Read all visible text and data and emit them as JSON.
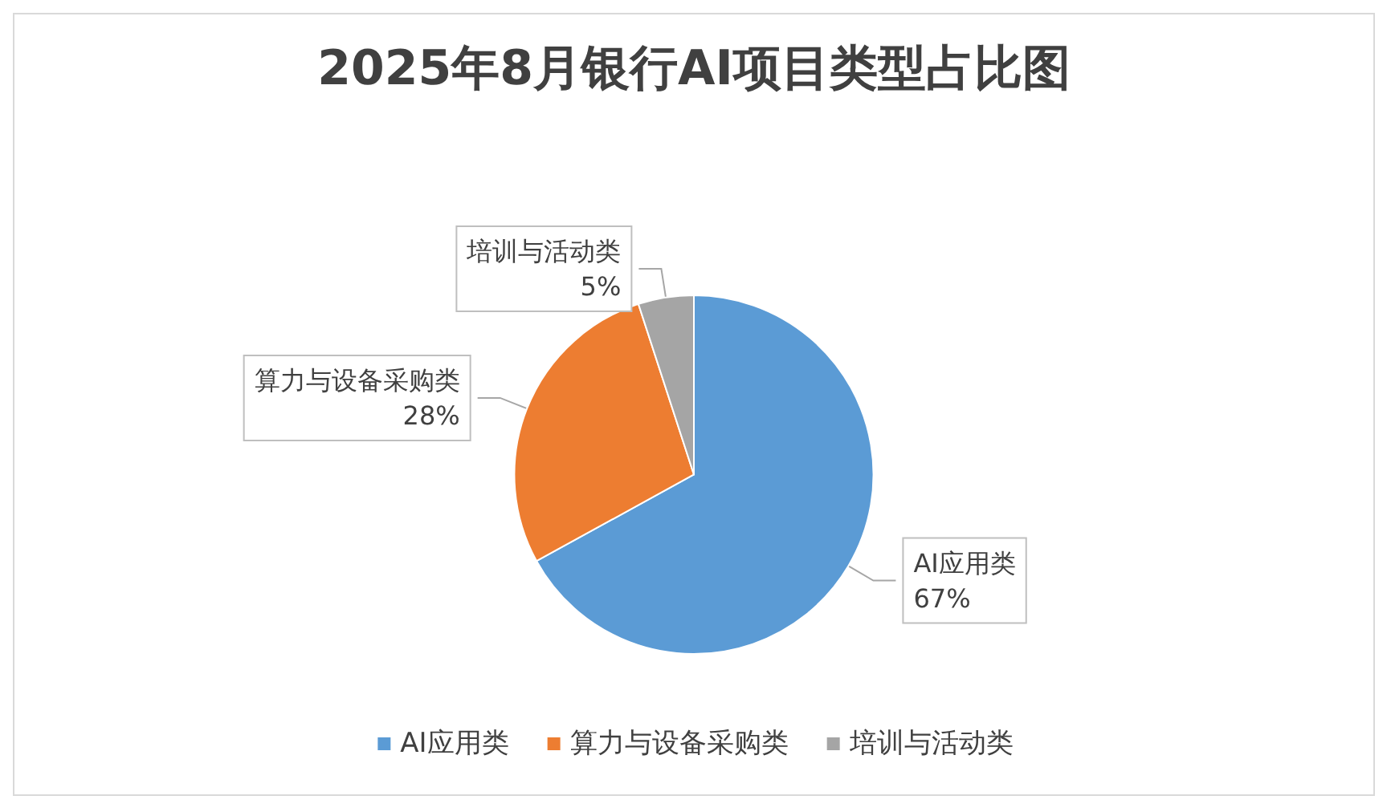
{
  "chart_data": {
    "type": "pie",
    "title": "2025年8月银行AI项目类型占比图",
    "categories": [
      "AI应用类",
      "算力与设备采购类",
      "培训与活动类"
    ],
    "values": [
      67,
      28,
      5
    ],
    "value_labels": [
      "67%",
      "28%",
      "5%"
    ],
    "colors": [
      "#5b9bd5",
      "#ed7d31",
      "#a5a5a5"
    ],
    "legend": "bottom"
  }
}
